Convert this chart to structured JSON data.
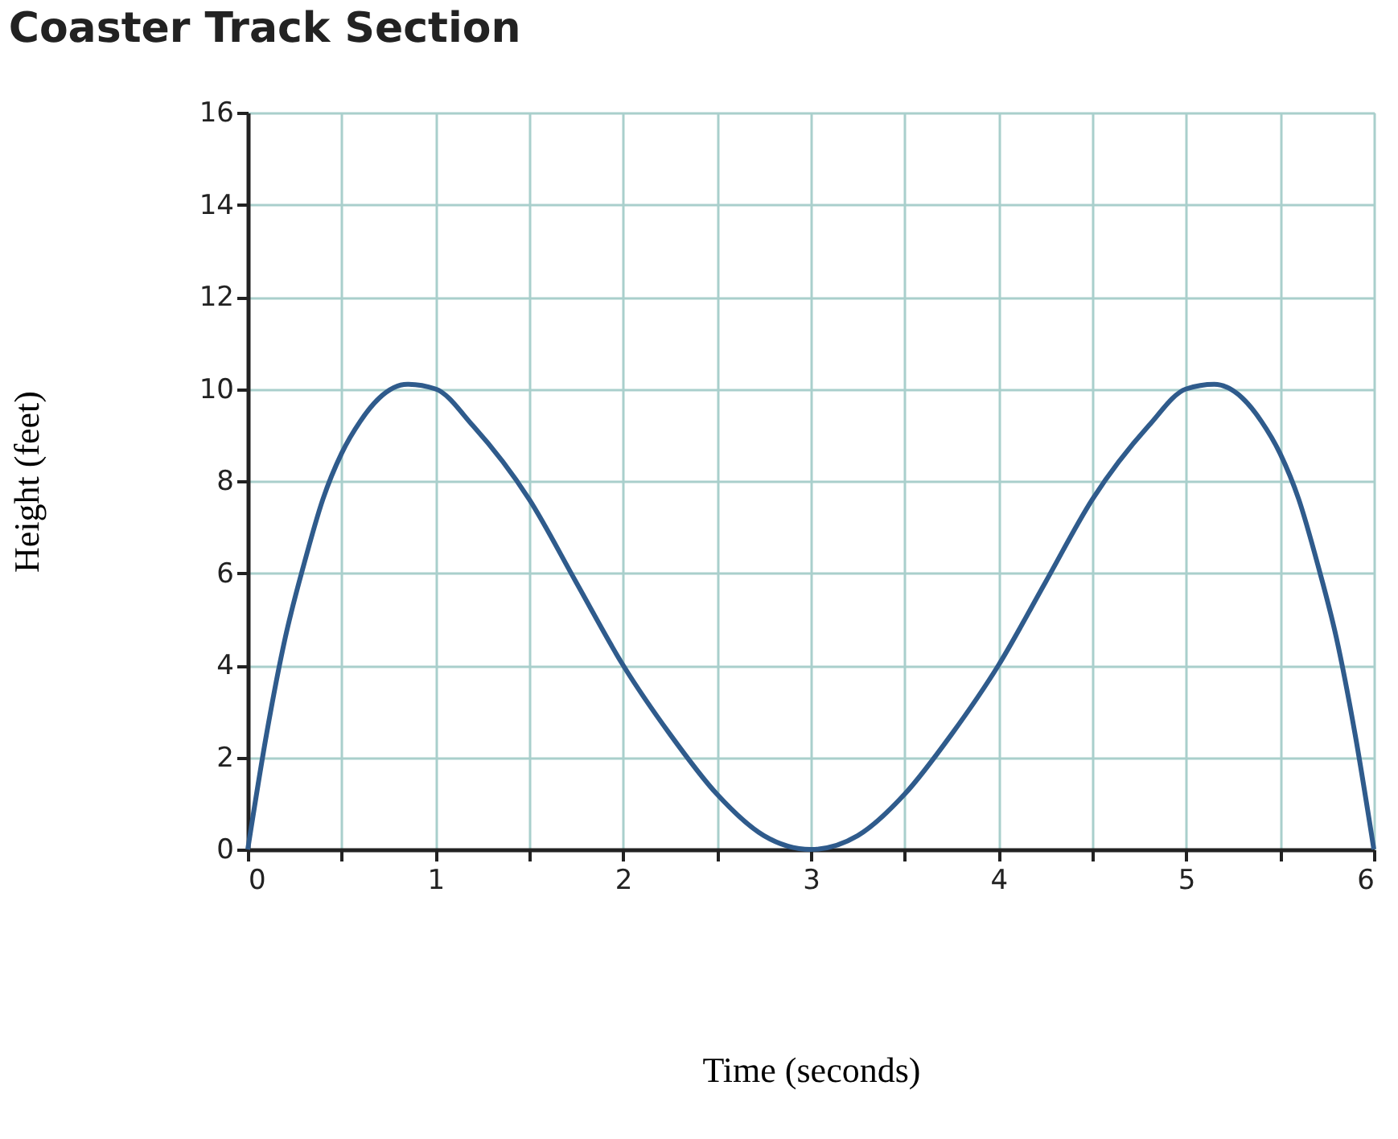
{
  "chart_data": {
    "type": "line",
    "title": "Coaster Track Section",
    "xlabel": "Time (seconds)",
    "ylabel": "Height (feet)",
    "x": [
      0,
      0.1,
      0.2,
      0.3,
      0.4,
      0.5,
      0.6,
      0.7,
      0.85,
      1.0,
      1.2,
      1.5,
      1.75,
      2.0,
      2.25,
      2.5,
      2.75,
      3.0,
      3.25,
      3.5,
      3.75,
      4.0,
      4.25,
      4.5,
      4.8,
      5.0,
      5.15,
      5.3,
      5.4,
      5.5,
      5.6,
      5.7,
      5.8,
      5.9,
      6.0
    ],
    "series": [
      {
        "color": "#2f5b8c",
        "values": [
          0,
          2.5,
          4.6,
          6.2,
          7.6,
          8.6,
          9.3,
          9.8,
          10.1,
          10.0,
          9.2,
          7.6,
          5.8,
          4.0,
          2.5,
          1.2,
          0.3,
          0,
          0.3,
          1.2,
          2.5,
          4.0,
          5.8,
          7.6,
          9.2,
          10.0,
          10.1,
          9.8,
          9.3,
          8.6,
          7.6,
          6.2,
          4.6,
          2.5,
          0
        ]
      }
    ],
    "xlim": [
      0,
      6
    ],
    "xticks": [
      0,
      {
        "value": 0.5,
        "label": null
      },
      1,
      {
        "value": 1.5,
        "label": null
      },
      2,
      {
        "value": 2.5,
        "label": null
      },
      3,
      {
        "value": 3.5,
        "label": null
      },
      4,
      {
        "value": 4.5,
        "label": null
      },
      5,
      {
        "value": 5.5,
        "label": null
      },
      6
    ],
    "ylim": [
      0,
      16
    ],
    "yticks": [
      0,
      2,
      4,
      6,
      8,
      10,
      12,
      14,
      16
    ],
    "grid": true,
    "legend": false,
    "marker": "none",
    "line_style": "solid"
  }
}
